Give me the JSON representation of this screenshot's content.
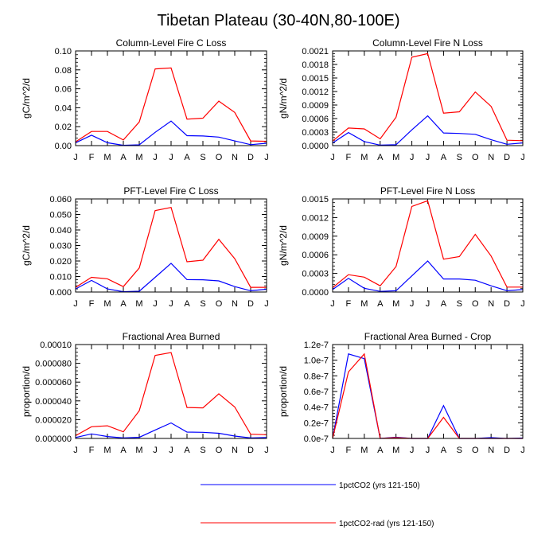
{
  "figure": {
    "title": "Tibetan Plateau (30-40N,80-100E)"
  },
  "legend": [
    {
      "label": "1pctCO2 (yrs 121-150)",
      "color": "#0000ff"
    },
    {
      "label": "1pctCO2-rad (yrs 121-150)",
      "color": "#ff0000"
    }
  ],
  "chart_data": [
    {
      "type": "line",
      "title": "Column-Level Fire C Loss",
      "ylabel": "gC/m^2/d",
      "categories": [
        "J",
        "F",
        "M",
        "A",
        "M",
        "J",
        "J",
        "A",
        "S",
        "O",
        "N",
        "D",
        "J"
      ],
      "ylim": [
        0,
        0.1
      ],
      "yticks": [
        "0.00",
        "0.02",
        "0.04",
        "0.06",
        "0.08",
        "0.10"
      ],
      "series": [
        {
          "name": "1pctCO2 (yrs 121-150)",
          "color": "#0000ff",
          "values": [
            0.003,
            0.011,
            0.003,
            0.0003,
            0.0008,
            0.014,
            0.026,
            0.0105,
            0.0102,
            0.009,
            0.005,
            0.001,
            0.0025
          ]
        },
        {
          "name": "1pctCO2-rad (yrs 121-150)",
          "color": "#ff0000",
          "values": [
            0.004,
            0.015,
            0.015,
            0.006,
            0.025,
            0.081,
            0.082,
            0.028,
            0.029,
            0.047,
            0.035,
            0.005,
            0.0045
          ]
        }
      ]
    },
    {
      "type": "line",
      "title": "Column-Level Fire N Loss",
      "ylabel": "gN/m^2/d",
      "categories": [
        "J",
        "F",
        "M",
        "A",
        "M",
        "J",
        "J",
        "A",
        "S",
        "O",
        "N",
        "D",
        "J"
      ],
      "ylim": [
        0,
        0.0021
      ],
      "yticks": [
        "0.0000",
        "0.0003",
        "0.0006",
        "0.0009",
        "0.0012",
        "0.0015",
        "0.0018",
        "0.0021"
      ],
      "series": [
        {
          "name": "1pctCO2 (yrs 121-150)",
          "color": "#0000ff",
          "values": [
            6e-05,
            0.00029,
            9e-05,
            1e-05,
            2e-05,
            0.00035,
            0.00066,
            0.00028,
            0.00027,
            0.00025,
            0.00013,
            3e-05,
            6e-05
          ]
        },
        {
          "name": "1pctCO2-rad (yrs 121-150)",
          "color": "#ff0000",
          "values": [
            0.0001,
            0.00039,
            0.00037,
            0.00015,
            0.00063,
            0.00196,
            0.00204,
            0.00072,
            0.00075,
            0.00119,
            0.00087,
            0.00012,
            0.00011
          ]
        }
      ]
    },
    {
      "type": "line",
      "title": "PFT-Level Fire C Loss",
      "ylabel": "gC/m^2/d",
      "categories": [
        "J",
        "F",
        "M",
        "A",
        "M",
        "J",
        "J",
        "A",
        "S",
        "O",
        "N",
        "D",
        "J"
      ],
      "ylim": [
        0,
        0.06
      ],
      "yticks": [
        "0.000",
        "0.010",
        "0.020",
        "0.030",
        "0.040",
        "0.050",
        "0.060"
      ],
      "series": [
        {
          "name": "1pctCO2 (yrs 121-150)",
          "color": "#0000ff",
          "values": [
            0.002,
            0.0075,
            0.002,
            0.0002,
            0.0005,
            0.0095,
            0.0185,
            0.008,
            0.0079,
            0.0072,
            0.0035,
            0.0008,
            0.0018
          ]
        },
        {
          "name": "1pctCO2-rad (yrs 121-150)",
          "color": "#ff0000",
          "values": [
            0.003,
            0.0095,
            0.0085,
            0.0035,
            0.0155,
            0.0525,
            0.0545,
            0.0195,
            0.0205,
            0.034,
            0.0215,
            0.003,
            0.003
          ]
        }
      ]
    },
    {
      "type": "line",
      "title": "PFT-Level Fire N Loss",
      "ylabel": "gN/m^2/d",
      "categories": [
        "J",
        "F",
        "M",
        "A",
        "M",
        "J",
        "J",
        "A",
        "S",
        "O",
        "N",
        "D",
        "J"
      ],
      "ylim": [
        0,
        0.0015
      ],
      "yticks": [
        "0.0000",
        "0.0003",
        "0.0006",
        "0.0009",
        "0.0012",
        "0.0015"
      ],
      "series": [
        {
          "name": "1pctCO2 (yrs 121-150)",
          "color": "#0000ff",
          "values": [
            4e-05,
            0.00022,
            6e-05,
            1e-05,
            2e-05,
            0.00026,
            0.0005,
            0.00021,
            0.00021,
            0.00019,
            0.0001,
            2e-05,
            4e-05
          ]
        },
        {
          "name": "1pctCO2-rad (yrs 121-150)",
          "color": "#ff0000",
          "values": [
            7e-05,
            0.00028,
            0.00024,
            0.0001,
            0.00041,
            0.00138,
            0.00147,
            0.00053,
            0.00057,
            0.00093,
            0.00058,
            8e-05,
            8e-05
          ]
        }
      ]
    },
    {
      "type": "line",
      "title": "Fractional Area Burned",
      "ylabel": "proportion/d",
      "categories": [
        "J",
        "F",
        "M",
        "A",
        "M",
        "J",
        "J",
        "A",
        "S",
        "O",
        "N",
        "D",
        "J"
      ],
      "ylim": [
        0,
        0.0001
      ],
      "yticks": [
        "0.000000",
        "0.000020",
        "0.000040",
        "0.000060",
        "0.000080",
        "0.00010"
      ],
      "series": [
        {
          "name": "1pctCO2 (yrs 121-150)",
          "color": "#0000ff",
          "values": [
            1e-06,
            4.8e-06,
            2e-06,
            5e-07,
            1.2e-06,
            9e-06,
            1.65e-05,
            6.8e-06,
            6.5e-06,
            5.5e-06,
            2.5e-06,
            5e-07,
            1e-06
          ]
        },
        {
          "name": "1pctCO2-rad (yrs 121-150)",
          "color": "#ff0000",
          "values": [
            3e-06,
            1.25e-05,
            1.35e-05,
            7e-06,
            2.95e-05,
            8.85e-05,
            9.15e-05,
            3.3e-05,
            3.25e-05,
            4.75e-05,
            3.35e-05,
            4.5e-06,
            4e-06
          ]
        }
      ]
    },
    {
      "type": "line",
      "title": "Fractional Area Burned - Crop",
      "ylabel": "proportion/d",
      "categories": [
        "J",
        "F",
        "M",
        "A",
        "M",
        "J",
        "J",
        "A",
        "S",
        "O",
        "N",
        "D",
        "J"
      ],
      "ylim": [
        0,
        1.2e-07
      ],
      "yticks": [
        "0.0e-7",
        "0.2e-7",
        "0.4e-7",
        "0.6e-7",
        "0.8e-7",
        "1.0e-7",
        "1.2e-7"
      ],
      "series": [
        {
          "name": "1pctCO2 (yrs 121-150)",
          "color": "#0000ff",
          "values": [
            0,
            1.08e-07,
            1.02e-07,
            0,
            1.5e-09,
            0,
            0,
            4.2e-08,
            0,
            0,
            1e-09,
            0,
            5e-10
          ]
        },
        {
          "name": "1pctCO2-rad (yrs 121-150)",
          "color": "#ff0000",
          "values": [
            0,
            8.5e-08,
            1.08e-07,
            0,
            1e-09,
            0,
            0,
            2.7e-08,
            0,
            0,
            0,
            0,
            0
          ]
        }
      ]
    }
  ]
}
